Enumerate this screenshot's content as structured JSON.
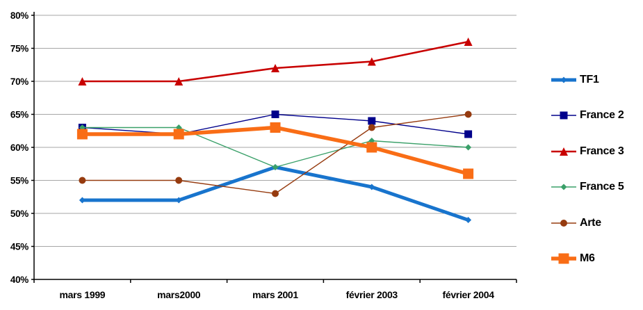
{
  "chart_data": {
    "type": "line",
    "title": "",
    "xlabel": "",
    "ylabel": "",
    "categories": [
      "mars 1999",
      "mars2000",
      "mars 2001",
      "février 2003",
      "février 2004"
    ],
    "y_axis": {
      "min": 40,
      "max": 80,
      "step": 5,
      "unit": "%",
      "tick_labels": [
        "40%",
        "45%",
        "50%",
        "55%",
        "60%",
        "65%",
        "70%",
        "75%",
        "80%"
      ]
    },
    "grid": true,
    "legend_position": "right",
    "series": [
      {
        "name": "TF1",
        "color": "#1874CD",
        "line_width": 5,
        "marker": "diamond",
        "marker_size": 9,
        "values": [
          52,
          52,
          57,
          54,
          49
        ]
      },
      {
        "name": "France 2",
        "color": "#00008B",
        "line_width": 1.4,
        "marker": "square",
        "marker_size": 11,
        "values": [
          63,
          62,
          65,
          64,
          62
        ]
      },
      {
        "name": "France 3",
        "color": "#C80000",
        "line_width": 2.6,
        "marker": "triangle",
        "marker_size": 12,
        "values": [
          70,
          70,
          72,
          73,
          76
        ]
      },
      {
        "name": "France 5",
        "color": "#3AA069",
        "line_width": 1.4,
        "marker": "diamond",
        "marker_size": 9,
        "values": [
          63,
          63,
          57,
          61,
          60
        ]
      },
      {
        "name": "Arte",
        "color": "#963B0F",
        "line_width": 1.4,
        "marker": "circle",
        "marker_size": 10,
        "values": [
          55,
          55,
          53,
          63,
          65
        ]
      },
      {
        "name": "M6",
        "color": "#F96D16",
        "line_width": 5.5,
        "marker": "square",
        "marker_size": 15,
        "values": [
          62,
          62,
          63,
          60,
          56
        ]
      }
    ]
  },
  "styles": {
    "background": "#FFFFFF",
    "gridline_color": "#A6A6A6",
    "axis_color": "#000000",
    "text_color": "#000000"
  }
}
